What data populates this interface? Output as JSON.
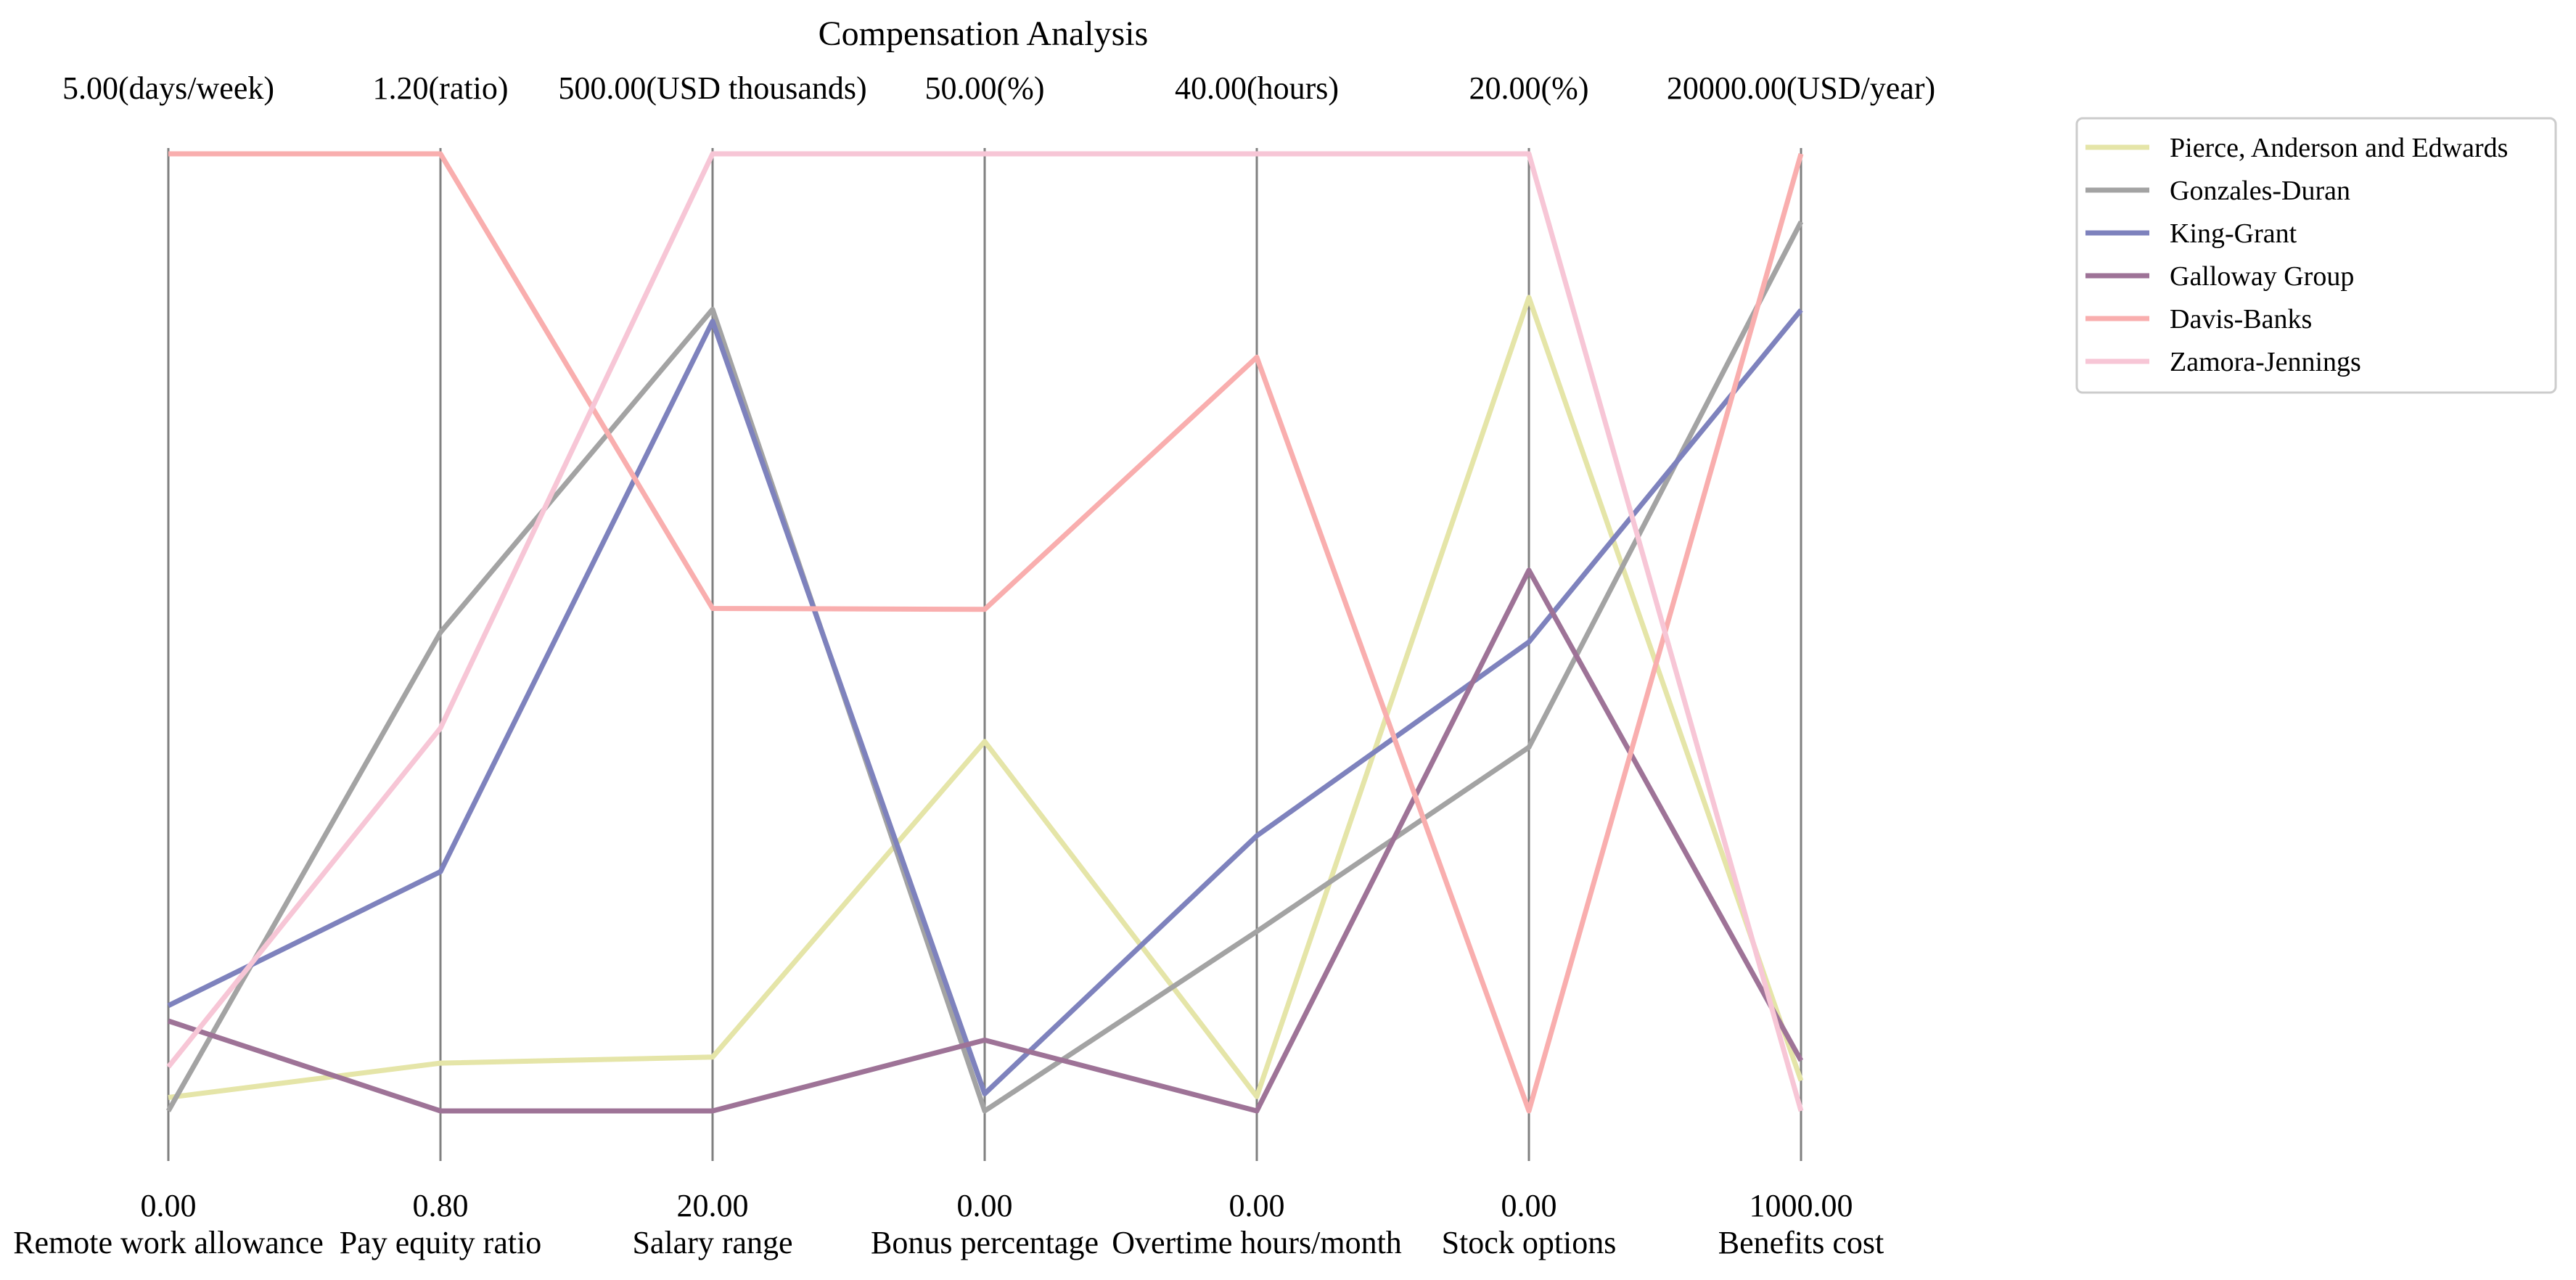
{
  "chart_data": {
    "type": "parallel_coordinates",
    "title": "Compensation Analysis",
    "axes": [
      {
        "name": "Remote work allowance",
        "min": 0,
        "max": 5,
        "min_label": "0.00",
        "max_label": "5.00(days/week)"
      },
      {
        "name": "Pay equity ratio",
        "min": 0.8,
        "max": 1.2,
        "min_label": "0.80",
        "max_label": "1.20(ratio)"
      },
      {
        "name": "Salary range",
        "min": 20,
        "max": 500,
        "min_label": "20.00",
        "max_label": "500.00(USD thousands)"
      },
      {
        "name": "Bonus percentage",
        "min": 0,
        "max": 50,
        "min_label": "0.00",
        "max_label": "50.00(%)"
      },
      {
        "name": "Overtime hours/month",
        "min": 0,
        "max": 40,
        "min_label": "0.00",
        "max_label": "40.00(hours)"
      },
      {
        "name": "Stock options",
        "min": 0,
        "max": 20,
        "min_label": "0.00",
        "max_label": "20.00(%)"
      },
      {
        "name": "Benefits cost",
        "min": 1000,
        "max": 20000,
        "min_label": "1000.00",
        "max_label": "20000.00(USD/year)"
      }
    ],
    "series": [
      {
        "name": "Pierce, Anderson and Edwards",
        "color": "#e5e5a8",
        "values": [
          0.07,
          0.82,
          47,
          19.3,
          0.6,
          17.0,
          1600
        ]
      },
      {
        "name": "Gonzales-Duran",
        "color": "#a3a3a3",
        "values": [
          0.0,
          1.0,
          422,
          0.0,
          7.5,
          7.6,
          18650
        ]
      },
      {
        "name": "King-Grant",
        "color": "#7e82bd",
        "values": [
          0.55,
          0.9,
          416,
          0.9,
          11.5,
          9.8,
          16900
        ]
      },
      {
        "name": "Galloway Group",
        "color": "#9e7397",
        "values": [
          0.47,
          0.8,
          20,
          3.7,
          0.0,
          11.3,
          2000
        ]
      },
      {
        "name": "Davis-Banks",
        "color": "#f9aeae",
        "values": [
          5.0,
          1.2,
          272,
          26.2,
          31.5,
          0.0,
          20000
        ]
      },
      {
        "name": "Zamora-Jennings",
        "color": "#f7c6d6",
        "values": [
          0.23,
          0.96,
          500,
          50,
          40,
          20,
          1000
        ]
      }
    ],
    "legend_position": "top-right",
    "grid": false
  }
}
